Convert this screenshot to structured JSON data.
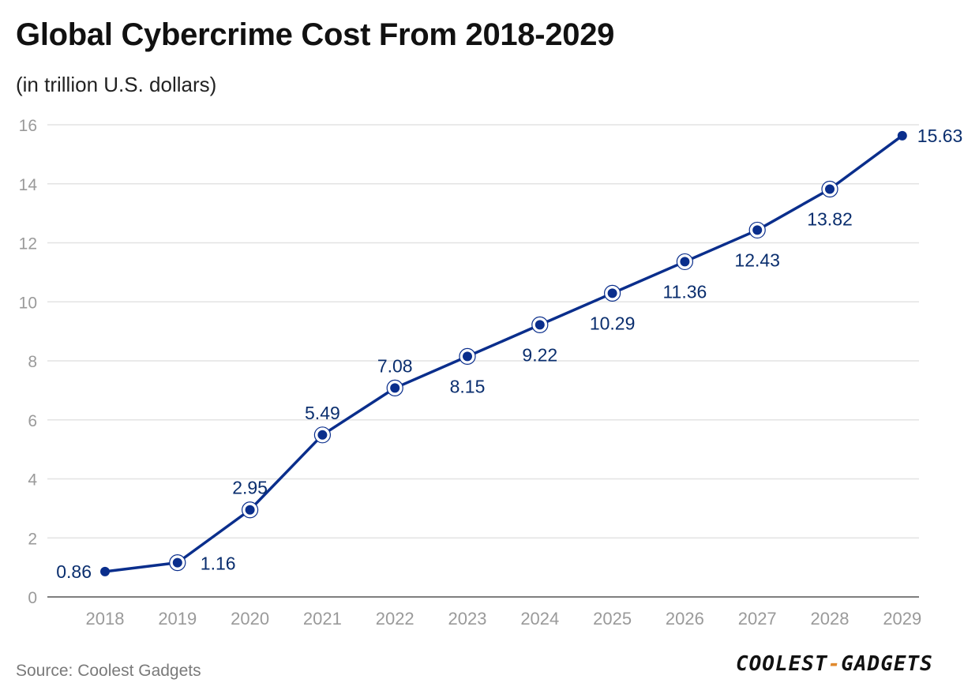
{
  "title": "Global Cybercrime Cost From 2018-2029",
  "subtitle": "(in trillion U.S. dollars)",
  "source": "Source: Coolest Gadgets",
  "brand": {
    "part1": "COOLEST",
    "separator": "-",
    "part2": "GADGETS"
  },
  "colors": {
    "series": "#0a2e8c",
    "label": "#0a2e6e",
    "grid": "#e3e3e3",
    "axis": "#555555",
    "tick": "#9a9a9a",
    "brand_accent": "#e08a2e"
  },
  "chart_data": {
    "type": "line",
    "title": "Global Cybercrime Cost From 2018-2029",
    "subtitle": "(in trillion U.S. dollars)",
    "xlabel": "",
    "ylabel": "",
    "categories": [
      "2018",
      "2019",
      "2020",
      "2021",
      "2022",
      "2023",
      "2024",
      "2025",
      "2026",
      "2027",
      "2028",
      "2029"
    ],
    "series": [
      {
        "name": "Global Cybercrime Cost",
        "values": [
          0.86,
          1.16,
          2.95,
          5.49,
          7.08,
          8.15,
          9.22,
          10.29,
          11.36,
          12.43,
          13.82,
          15.63
        ],
        "labels": [
          "0.86",
          "1.16",
          "2.95",
          "5.49",
          "7.08",
          "8.15",
          "9.22",
          "10.29",
          "11.36",
          "12.43",
          "13.82",
          "15.63"
        ],
        "label_positions": [
          "left",
          "right",
          "above",
          "above",
          "above",
          "below",
          "below",
          "below",
          "below",
          "below",
          "below",
          "right"
        ]
      }
    ],
    "ylim": [
      0,
      16
    ],
    "yticks": [
      0,
      2,
      4,
      6,
      8,
      10,
      12,
      14,
      16
    ],
    "grid": true,
    "legend": "none"
  }
}
